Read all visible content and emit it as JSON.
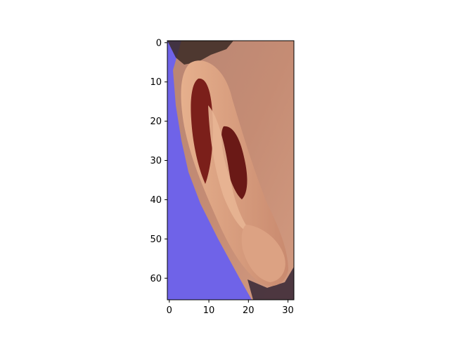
{
  "figure": {
    "background": "#ffffff",
    "image_subject": "close-up crop of a human ear against a blue background",
    "colors": {
      "background_blue": "#6f63e8",
      "skin_light": "#d4967a",
      "skin_mid": "#b97d66",
      "ear_rim": "#e3a884",
      "ear_inner": "#7b1f1a",
      "hair_dark": "#3b2a24"
    }
  },
  "axes": {
    "x_ticks": [
      {
        "value": 0,
        "label": "0"
      },
      {
        "value": 10,
        "label": "10"
      },
      {
        "value": 20,
        "label": "20"
      },
      {
        "value": 30,
        "label": "30"
      }
    ],
    "y_ticks": [
      {
        "value": 0,
        "label": "0"
      },
      {
        "value": 10,
        "label": "10"
      },
      {
        "value": 20,
        "label": "20"
      },
      {
        "value": 30,
        "label": "30"
      },
      {
        "value": 40,
        "label": "40"
      },
      {
        "value": 50,
        "label": "50"
      },
      {
        "value": 60,
        "label": "60"
      }
    ],
    "x_range": [
      -0.5,
      31.5
    ],
    "y_range": [
      65.5,
      -0.5
    ]
  }
}
